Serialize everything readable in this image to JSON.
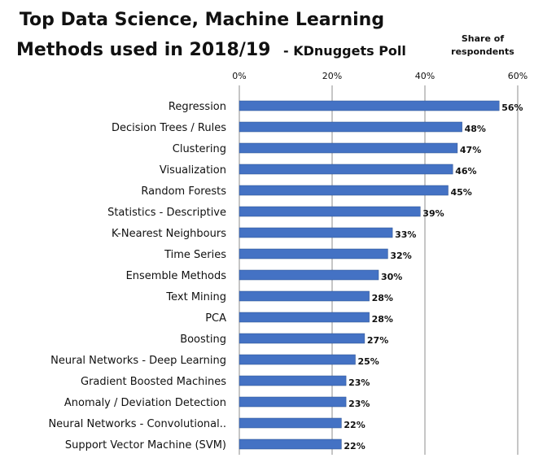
{
  "title_line1": "Top Data Science, Machine Learning",
  "title_line2_main": "Methods used in 2018/19",
  "title_line2_suffix": "- KDnuggets Poll",
  "colors": {
    "bar": "#4472c4",
    "bar_stroke": "#2f528f",
    "gridline": "#8c8c8c"
  },
  "chart_data": {
    "type": "bar",
    "orientation": "horizontal",
    "title": "Top Data Science, Machine Learning Methods used in 2018/19 - KDnuggets Poll",
    "axis_title": [
      "Share of",
      "respondents"
    ],
    "xlim": [
      0,
      60
    ],
    "ticks": [
      0,
      20,
      40,
      60
    ],
    "tick_labels": [
      "0%",
      "20%",
      "40%",
      "60%"
    ],
    "grid": true,
    "categories": [
      "Regression",
      "Decision Trees / Rules",
      "Clustering",
      "Visualization",
      "Random Forests",
      "Statistics - Descriptive",
      "K-Nearest Neighbours",
      "Time Series",
      "Ensemble Methods",
      "Text Mining",
      "PCA",
      "Boosting",
      "Neural Networks - Deep Learning",
      "Gradient Boosted Machines",
      "Anomaly / Deviation Detection",
      "Neural Networks - Convolutional..",
      "Support Vector Machine (SVM)"
    ],
    "values": [
      56,
      48,
      47,
      46,
      45,
      39,
      33,
      32,
      30,
      28,
      28,
      27,
      25,
      23,
      23,
      22,
      22
    ],
    "value_labels": [
      "56%",
      "48%",
      "47%",
      "46%",
      "45%",
      "39%",
      "33%",
      "32%",
      "30%",
      "28%",
      "28%",
      "27%",
      "25%",
      "23%",
      "23%",
      "22%",
      "22%"
    ]
  }
}
